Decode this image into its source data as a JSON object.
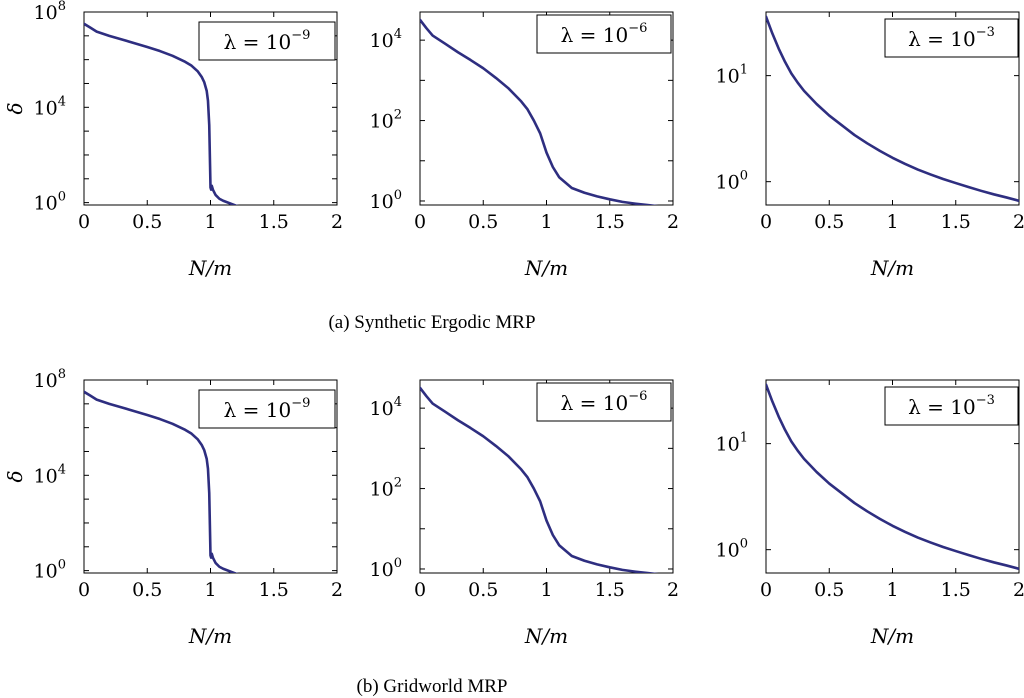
{
  "chart_data": [
    {
      "type": "line",
      "panel": "a",
      "legend": {
        "prefix": "λ = 10",
        "exponent": "−9"
      },
      "xlabel": "N/m",
      "ylabel": "δ",
      "xlim": [
        0,
        2
      ],
      "ylim_log10": [
        -0.1,
        8
      ],
      "yscale": "log",
      "xticks": [
        "0",
        "0.5",
        "1",
        "1.5",
        "2"
      ],
      "yticks": [
        {
          "base": "10",
          "exp": "0"
        },
        {
          "base": "10",
          "exp": "4"
        },
        {
          "base": "10",
          "exp": "8"
        }
      ],
      "series": [
        {
          "x": [
            0,
            0.05,
            0.1,
            0.2,
            0.3,
            0.4,
            0.5,
            0.6,
            0.7,
            0.8,
            0.85,
            0.9,
            0.93,
            0.95,
            0.97,
            0.98,
            0.99,
            1.0,
            1.005,
            1.01,
            1.02,
            1.04,
            1.07,
            1.1,
            1.2,
            1.3,
            1.4,
            1.5,
            1.6,
            1.7,
            1.8,
            1.9,
            2.0
          ],
          "y": [
            32000000.0,
            22000000.0,
            15000000.0,
            10000000.0,
            7000000.0,
            4900000.0,
            3400000.0,
            2300000.0,
            1450000.0,
            810000.0,
            560000.0,
            320000.0,
            190000.0,
            115000.0,
            49000.0,
            19000.0,
            1800,
            4.3,
            3.5,
            5.1,
            3.4,
            2.1,
            1.45,
            1.2,
            0.75,
            0.57,
            0.47,
            0.4,
            0.34,
            0.3,
            0.26,
            0.23,
            0.2
          ]
        }
      ]
    },
    {
      "type": "line",
      "panel": "a",
      "legend": {
        "prefix": "λ = 10",
        "exponent": "−6"
      },
      "xlabel": "N/m",
      "xlim": [
        0,
        2
      ],
      "ylim_log10": [
        -0.1,
        4.7
      ],
      "yscale": "log",
      "xticks": [
        "0",
        "0.5",
        "1",
        "1.5",
        "2"
      ],
      "yticks": [
        {
          "base": "10",
          "exp": "0"
        },
        {
          "base": "10",
          "exp": "2"
        },
        {
          "base": "10",
          "exp": "4"
        }
      ],
      "series": [
        {
          "x": [
            0,
            0.05,
            0.1,
            0.2,
            0.3,
            0.4,
            0.5,
            0.6,
            0.7,
            0.8,
            0.85,
            0.9,
            0.95,
            1.0,
            1.05,
            1.1,
            1.2,
            1.3,
            1.4,
            1.5,
            1.6,
            1.7,
            1.8,
            1.9,
            2.0
          ],
          "y": [
            32000,
            20000,
            13000,
            8100,
            5000,
            3200,
            2000,
            1150,
            630,
            300,
            190,
            100,
            48,
            16,
            7,
            3.9,
            2.1,
            1.6,
            1.3,
            1.1,
            0.95,
            0.86,
            0.79,
            0.73,
            0.69
          ]
        }
      ]
    },
    {
      "type": "line",
      "panel": "a",
      "legend": {
        "prefix": "λ = 10",
        "exponent": "−3"
      },
      "xlabel": "N/m",
      "xlim": [
        0,
        2
      ],
      "ylim_log10": [
        -0.22,
        1.6
      ],
      "yscale": "log",
      "xticks": [
        "0",
        "0.5",
        "1",
        "1.5",
        "2"
      ],
      "yticks": [
        {
          "base": "10",
          "exp": "0"
        },
        {
          "base": "10",
          "exp": "1"
        }
      ],
      "series": [
        {
          "x": [
            0,
            0.05,
            0.1,
            0.15,
            0.2,
            0.25,
            0.3,
            0.4,
            0.5,
            0.6,
            0.7,
            0.8,
            0.9,
            1.0,
            1.1,
            1.2,
            1.3,
            1.4,
            1.5,
            1.6,
            1.7,
            1.8,
            1.9,
            2.0
          ],
          "y": [
            36,
            25,
            18,
            13.5,
            10.5,
            8.6,
            7.2,
            5.4,
            4.2,
            3.4,
            2.75,
            2.3,
            1.95,
            1.68,
            1.47,
            1.3,
            1.17,
            1.06,
            0.97,
            0.89,
            0.82,
            0.76,
            0.71,
            0.66
          ]
        }
      ]
    },
    {
      "type": "line",
      "panel": "b",
      "legend": {
        "prefix": "λ = 10",
        "exponent": "−9"
      },
      "xlabel": "N/m",
      "ylabel": "δ",
      "xlim": [
        0,
        2
      ],
      "ylim_log10": [
        -0.1,
        8
      ],
      "yscale": "log",
      "xticks": [
        "0",
        "0.5",
        "1",
        "1.5",
        "2"
      ],
      "yticks": [
        {
          "base": "10",
          "exp": "0"
        },
        {
          "base": "10",
          "exp": "4"
        },
        {
          "base": "10",
          "exp": "8"
        }
      ],
      "series": [
        {
          "x": [
            0,
            0.05,
            0.1,
            0.2,
            0.3,
            0.4,
            0.5,
            0.6,
            0.7,
            0.8,
            0.85,
            0.9,
            0.93,
            0.95,
            0.97,
            0.98,
            0.99,
            1.0,
            1.005,
            1.01,
            1.02,
            1.04,
            1.07,
            1.1,
            1.2,
            1.3,
            1.4,
            1.5,
            1.6,
            1.7,
            1.8,
            1.9,
            2.0
          ],
          "y": [
            32000000.0,
            22000000.0,
            15000000.0,
            10000000.0,
            7000000.0,
            4900000.0,
            3400000.0,
            2300000.0,
            1450000.0,
            810000.0,
            560000.0,
            320000.0,
            190000.0,
            115000.0,
            49000.0,
            19000.0,
            1800,
            4.3,
            3.5,
            5.1,
            3.4,
            2.1,
            1.45,
            1.2,
            0.75,
            0.57,
            0.47,
            0.4,
            0.34,
            0.3,
            0.26,
            0.23,
            0.2
          ]
        }
      ]
    },
    {
      "type": "line",
      "panel": "b",
      "legend": {
        "prefix": "λ = 10",
        "exponent": "−6"
      },
      "xlabel": "N/m",
      "xlim": [
        0,
        2
      ],
      "ylim_log10": [
        -0.1,
        4.7
      ],
      "yscale": "log",
      "xticks": [
        "0",
        "0.5",
        "1",
        "1.5",
        "2"
      ],
      "yticks": [
        {
          "base": "10",
          "exp": "0"
        },
        {
          "base": "10",
          "exp": "2"
        },
        {
          "base": "10",
          "exp": "4"
        }
      ],
      "series": [
        {
          "x": [
            0,
            0.05,
            0.1,
            0.2,
            0.3,
            0.4,
            0.5,
            0.6,
            0.7,
            0.8,
            0.85,
            0.9,
            0.95,
            1.0,
            1.05,
            1.1,
            1.2,
            1.3,
            1.4,
            1.5,
            1.6,
            1.7,
            1.8,
            1.9,
            2.0
          ],
          "y": [
            32000,
            20000,
            13000,
            8100,
            5000,
            3200,
            2000,
            1150,
            630,
            300,
            190,
            100,
            48,
            16,
            7,
            3.9,
            2.1,
            1.6,
            1.3,
            1.1,
            0.95,
            0.86,
            0.79,
            0.73,
            0.69
          ]
        }
      ]
    },
    {
      "type": "line",
      "panel": "b",
      "legend": {
        "prefix": "λ = 10",
        "exponent": "−3"
      },
      "xlabel": "N/m",
      "xlim": [
        0,
        2
      ],
      "ylim_log10": [
        -0.22,
        1.6
      ],
      "yscale": "log",
      "xticks": [
        "0",
        "0.5",
        "1",
        "1.5",
        "2"
      ],
      "yticks": [
        {
          "base": "10",
          "exp": "0"
        },
        {
          "base": "10",
          "exp": "1"
        }
      ],
      "series": [
        {
          "x": [
            0,
            0.05,
            0.1,
            0.15,
            0.2,
            0.25,
            0.3,
            0.4,
            0.5,
            0.6,
            0.7,
            0.8,
            0.9,
            1.0,
            1.1,
            1.2,
            1.3,
            1.4,
            1.5,
            1.6,
            1.7,
            1.8,
            1.9,
            2.0
          ],
          "y": [
            36,
            25,
            18,
            13.5,
            10.5,
            8.6,
            7.2,
            5.4,
            4.2,
            3.4,
            2.75,
            2.3,
            1.95,
            1.68,
            1.47,
            1.3,
            1.17,
            1.06,
            0.97,
            0.89,
            0.82,
            0.76,
            0.71,
            0.66
          ]
        }
      ]
    }
  ],
  "captions": {
    "a": "(a) Synthetic Ergodic MRP",
    "b": "(b) Gridworld MRP"
  },
  "colors": {
    "curve": "#2e2e80"
  }
}
